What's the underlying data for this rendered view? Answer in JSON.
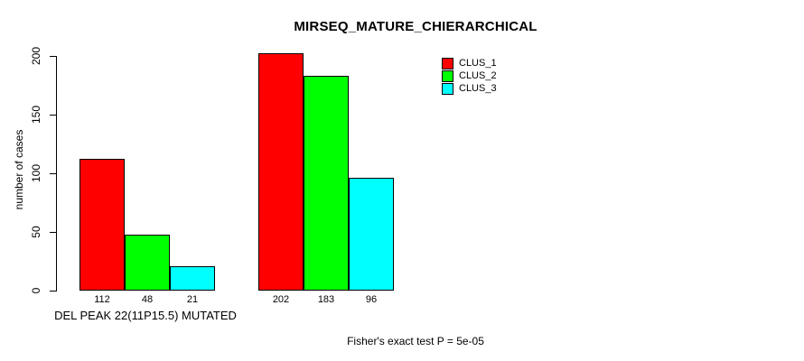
{
  "title": "MIRSEQ_MATURE_CHIERARCHICAL",
  "footnote": "Fisher's exact test P = 5e-05",
  "chart_data": {
    "type": "bar",
    "title": "MIRSEQ_MATURE_CHIERARCHICAL",
    "xlabel": "",
    "ylabel": "number of cases",
    "ylim": [
      0,
      200
    ],
    "yticks": [
      0,
      50,
      100,
      150,
      200
    ],
    "grid": false,
    "legend_position": "top-right",
    "categories": [
      "DEL PEAK 22(11P15.5) MUTATED",
      ""
    ],
    "series": [
      {
        "name": "CLUS_1",
        "color": "#ff0000",
        "values": [
          112,
          202
        ]
      },
      {
        "name": "CLUS_2",
        "color": "#00ff00",
        "values": [
          48,
          183
        ]
      },
      {
        "name": "CLUS_3",
        "color": "#00ffff",
        "values": [
          21,
          96
        ]
      }
    ],
    "bar_value_labels_shown": true,
    "annotation": "Fisher's exact test P = 5e-05"
  }
}
